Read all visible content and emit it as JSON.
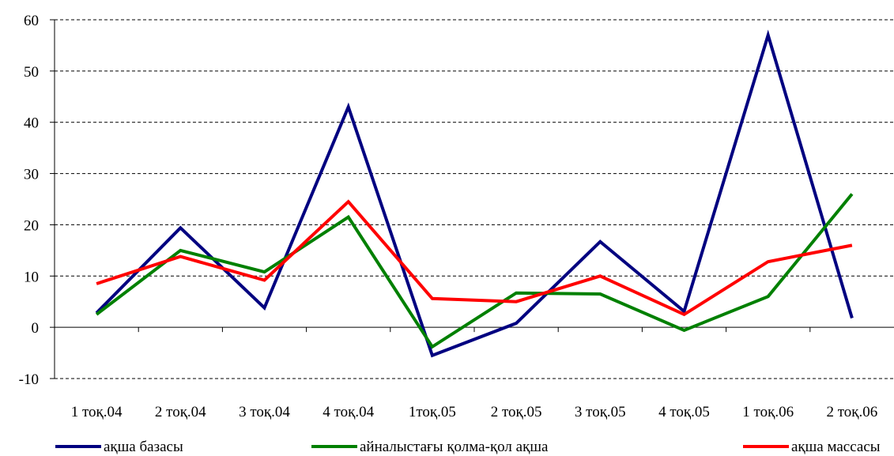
{
  "chart_data": {
    "type": "line",
    "categories": [
      "1 тоқ.04",
      "2 тоқ.04",
      "3 тоқ.04",
      "4 тоқ.04",
      "1тоқ.05",
      "2 тоқ.05",
      "3 тоқ.05",
      "4 тоқ.05",
      "1 тоқ.06",
      "2 тоқ.06"
    ],
    "ylim": [
      -10,
      60
    ],
    "yticks": [
      "-10",
      "0",
      "10",
      "20",
      "30",
      "40",
      "50",
      "60"
    ],
    "grid": true,
    "legend_position": "bottom",
    "series": [
      {
        "name": "ақша базасы",
        "color": "#000080",
        "values": [
          2.8,
          19.4,
          3.8,
          43.0,
          -5.5,
          0.8,
          16.7,
          3.1,
          57.0,
          1.8
        ]
      },
      {
        "name": "айналыстағы қолма-қол ақша",
        "color": "#008000",
        "values": [
          2.5,
          15.0,
          10.8,
          21.5,
          -3.8,
          6.7,
          6.5,
          -0.6,
          6.0,
          26.0
        ]
      },
      {
        "name": "ақша массасы",
        "color": "#ff0000",
        "values": [
          8.5,
          13.8,
          9.2,
          24.5,
          5.6,
          5.0,
          10.0,
          2.5,
          12.8,
          16.0
        ]
      }
    ]
  }
}
